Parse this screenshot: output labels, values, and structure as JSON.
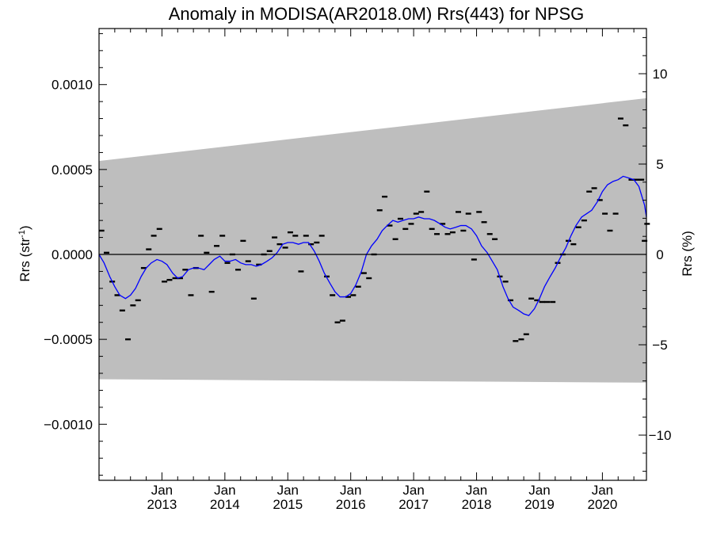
{
  "chart_data": {
    "type": "scatter",
    "title": "Anomaly in MODISA(AR2018.0M) Rrs(443) for NPSG",
    "ylabel_left": "Rrs (str",
    "ylabel_left_sup": "-1",
    "ylabel_left_end": ")",
    "ylabel_right": "Rrs (%)",
    "xlim": [
      2012.0,
      2020.7
    ],
    "ylim": [
      -0.00133,
      0.00133
    ],
    "y2lim": [
      -12.5,
      12.5
    ],
    "grid": false,
    "x_ticks": [
      {
        "top": "Jan",
        "bottom": "2013",
        "x": 2013
      },
      {
        "top": "Jan",
        "bottom": "2014",
        "x": 2014
      },
      {
        "top": "Jan",
        "bottom": "2015",
        "x": 2015
      },
      {
        "top": "Jan",
        "bottom": "2016",
        "x": 2016
      },
      {
        "top": "Jan",
        "bottom": "2017",
        "x": 2017
      },
      {
        "top": "Jan",
        "bottom": "2018",
        "x": 2018
      },
      {
        "top": "Jan",
        "bottom": "2019",
        "x": 2019
      },
      {
        "top": "Jan",
        "bottom": "2020",
        "x": 2020
      }
    ],
    "y_ticks_left": [
      {
        "value": 0.001,
        "label": "0.0010"
      },
      {
        "value": 0.0005,
        "label": "0.0005"
      },
      {
        "value": 0.0,
        "label": "0.0000"
      },
      {
        "value": -0.0005,
        "label": "−0.0005"
      },
      {
        "value": -0.001,
        "label": "−0.0010"
      }
    ],
    "y_ticks_right": [
      {
        "value": 10,
        "label": "10"
      },
      {
        "value": 5,
        "label": "5"
      },
      {
        "value": 0,
        "label": "0"
      },
      {
        "value": -5,
        "label": "−5"
      },
      {
        "value": -10,
        "label": "−10"
      }
    ],
    "band": {
      "color": "#bebebe",
      "upper": [
        [
          2012.0,
          0.00055
        ],
        [
          2020.7,
          0.00092
        ]
      ],
      "lower": [
        [
          2012.0,
          -0.000735
        ],
        [
          2020.7,
          -0.000755
        ]
      ]
    },
    "zero_line": 0.0,
    "colors": {
      "monthly": "#000000",
      "smoothed": "#0000ff",
      "zero": "#000000"
    },
    "series": [
      {
        "style": "dash",
        "values": [
          [
            2012.04,
            0.00014
          ],
          [
            2012.12,
            1e-05
          ],
          [
            2012.21,
            -0.00016
          ],
          [
            2012.29,
            -0.00024
          ],
          [
            2012.37,
            -0.00033
          ],
          [
            2012.46,
            -0.0005
          ],
          [
            2012.54,
            -0.0003
          ],
          [
            2012.62,
            -0.00027
          ],
          [
            2012.71,
            -8e-05
          ],
          [
            2012.79,
            3e-05
          ],
          [
            2012.87,
            0.00011
          ],
          [
            2012.96,
            0.00015
          ],
          [
            2013.04,
            -0.00016
          ],
          [
            2013.12,
            -0.00015
          ],
          [
            2013.21,
            -0.00014
          ],
          [
            2013.29,
            -0.00014
          ],
          [
            2013.37,
            -9e-05
          ],
          [
            2013.46,
            -0.00024
          ],
          [
            2013.54,
            -8e-05
          ],
          [
            2013.62,
            0.00011
          ],
          [
            2013.71,
            1e-05
          ],
          [
            2013.79,
            -0.00022
          ],
          [
            2013.87,
            5e-05
          ],
          [
            2013.96,
            0.00011
          ],
          [
            2014.04,
            -5e-05
          ],
          [
            2014.12,
            0.0
          ],
          [
            2014.21,
            -9e-05
          ],
          [
            2014.29,
            8e-05
          ],
          [
            2014.37,
            -4e-05
          ],
          [
            2014.46,
            -0.00026
          ],
          [
            2014.54,
            -6e-05
          ],
          [
            2014.62,
            0.0
          ],
          [
            2014.71,
            2e-05
          ],
          [
            2014.79,
            0.0001
          ],
          [
            2014.87,
            6e-05
          ],
          [
            2014.96,
            4e-05
          ],
          [
            2015.04,
            0.00013
          ],
          [
            2015.12,
            0.00011
          ],
          [
            2015.21,
            -0.0001
          ],
          [
            2015.29,
            0.00011
          ],
          [
            2015.37,
            6e-05
          ],
          [
            2015.46,
            7e-05
          ],
          [
            2015.54,
            0.00011
          ],
          [
            2015.62,
            -0.00013
          ],
          [
            2015.71,
            -0.00024
          ],
          [
            2015.79,
            -0.0004
          ],
          [
            2015.87,
            -0.00039
          ],
          [
            2015.96,
            -0.00025
          ],
          [
            2016.04,
            -0.00024
          ],
          [
            2016.12,
            -0.00019
          ],
          [
            2016.21,
            -0.00011
          ],
          [
            2016.29,
            -0.00014
          ],
          [
            2016.37,
            0.0
          ],
          [
            2016.46,
            0.00026
          ],
          [
            2016.54,
            0.00034
          ],
          [
            2016.62,
            0.00017
          ],
          [
            2016.71,
            9e-05
          ],
          [
            2016.79,
            0.00021
          ],
          [
            2016.87,
            0.00015
          ],
          [
            2016.96,
            0.00018
          ],
          [
            2017.04,
            0.00024
          ],
          [
            2017.12,
            0.00025
          ],
          [
            2017.21,
            0.00037
          ],
          [
            2017.29,
            0.00015
          ],
          [
            2017.37,
            0.00012
          ],
          [
            2017.46,
            0.00018
          ],
          [
            2017.54,
            0.00012
          ],
          [
            2017.62,
            0.00013
          ],
          [
            2017.71,
            0.00025
          ],
          [
            2017.79,
            0.00014
          ],
          [
            2017.87,
            0.00024
          ],
          [
            2017.96,
            -3e-05
          ],
          [
            2018.04,
            0.00025
          ],
          [
            2018.12,
            0.00019
          ],
          [
            2018.21,
            0.00012
          ],
          [
            2018.29,
            9e-05
          ],
          [
            2018.37,
            -0.00013
          ],
          [
            2018.46,
            -0.00016
          ],
          [
            2018.54,
            -0.00027
          ],
          [
            2018.62,
            -0.00051
          ],
          [
            2018.71,
            -0.0005
          ],
          [
            2018.79,
            -0.00047
          ],
          [
            2018.87,
            -0.00026
          ],
          [
            2018.96,
            -0.00027
          ],
          [
            2019.04,
            -0.00028
          ],
          [
            2019.12,
            -0.00028
          ],
          [
            2019.21,
            -0.00028
          ],
          [
            2019.29,
            -5e-05
          ],
          [
            2019.37,
            -0.0
          ],
          [
            2019.46,
            8e-05
          ],
          [
            2019.54,
            6e-05
          ],
          [
            2019.62,
            0.00016
          ],
          [
            2019.71,
            0.0002
          ],
          [
            2019.79,
            0.00037
          ],
          [
            2019.87,
            0.00039
          ],
          [
            2019.96,
            0.00032
          ],
          [
            2020.04,
            0.00024
          ],
          [
            2020.12,
            0.00014
          ],
          [
            2020.21,
            0.00024
          ],
          [
            2020.29,
            0.0008
          ],
          [
            2020.37,
            0.00076
          ],
          [
            2020.46,
            0.00044
          ],
          [
            2020.54,
            0.00044
          ],
          [
            2020.62,
            0.00044
          ],
          [
            2020.67,
            8e-05
          ],
          [
            2020.71,
            0.00018
          ]
        ]
      },
      {
        "style": "line",
        "values": [
          [
            2012.0,
            0.0
          ],
          [
            2012.08,
            -5e-05
          ],
          [
            2012.17,
            -0.00013
          ],
          [
            2012.25,
            -0.00019
          ],
          [
            2012.33,
            -0.00024
          ],
          [
            2012.42,
            -0.00026
          ],
          [
            2012.5,
            -0.00024
          ],
          [
            2012.58,
            -0.0002
          ],
          [
            2012.67,
            -0.00013
          ],
          [
            2012.75,
            -8e-05
          ],
          [
            2012.83,
            -5e-05
          ],
          [
            2012.92,
            -3e-05
          ],
          [
            2013.0,
            -4e-05
          ],
          [
            2013.08,
            -6e-05
          ],
          [
            2013.17,
            -0.00011
          ],
          [
            2013.25,
            -0.00014
          ],
          [
            2013.33,
            -0.00013
          ],
          [
            2013.42,
            -9e-05
          ],
          [
            2013.5,
            -8e-05
          ],
          [
            2013.58,
            -8e-05
          ],
          [
            2013.67,
            -9e-05
          ],
          [
            2013.75,
            -6e-05
          ],
          [
            2013.83,
            -3e-05
          ],
          [
            2013.92,
            -1e-05
          ],
          [
            2014.0,
            -4e-05
          ],
          [
            2014.08,
            -4e-05
          ],
          [
            2014.17,
            -3e-05
          ],
          [
            2014.25,
            -5e-05
          ],
          [
            2014.33,
            -6e-05
          ],
          [
            2014.42,
            -6e-05
          ],
          [
            2014.5,
            -7e-05
          ],
          [
            2014.58,
            -6e-05
          ],
          [
            2014.67,
            -4e-05
          ],
          [
            2014.75,
            -2e-05
          ],
          [
            2014.83,
            1e-05
          ],
          [
            2014.92,
            6e-05
          ],
          [
            2015.0,
            7e-05
          ],
          [
            2015.08,
            7e-05
          ],
          [
            2015.17,
            6e-05
          ],
          [
            2015.25,
            7e-05
          ],
          [
            2015.33,
            7e-05
          ],
          [
            2015.42,
            2e-05
          ],
          [
            2015.5,
            -4e-05
          ],
          [
            2015.58,
            -0.00011
          ],
          [
            2015.67,
            -0.00017
          ],
          [
            2015.75,
            -0.00022
          ],
          [
            2015.83,
            -0.00025
          ],
          [
            2015.92,
            -0.00025
          ],
          [
            2016.0,
            -0.00023
          ],
          [
            2016.08,
            -0.00018
          ],
          [
            2016.17,
            -0.0001
          ],
          [
            2016.25,
            0.0
          ],
          [
            2016.33,
            5e-05
          ],
          [
            2016.42,
            9e-05
          ],
          [
            2016.5,
            0.00014
          ],
          [
            2016.58,
            0.00017
          ],
          [
            2016.67,
            0.0002
          ],
          [
            2016.75,
            0.00019
          ],
          [
            2016.83,
            0.0002
          ],
          [
            2016.92,
            0.00021
          ],
          [
            2017.0,
            0.00021
          ],
          [
            2017.08,
            0.00022
          ],
          [
            2017.17,
            0.00021
          ],
          [
            2017.25,
            0.00021
          ],
          [
            2017.33,
            0.0002
          ],
          [
            2017.42,
            0.00018
          ],
          [
            2017.5,
            0.00016
          ],
          [
            2017.58,
            0.00015
          ],
          [
            2017.67,
            0.00016
          ],
          [
            2017.75,
            0.00017
          ],
          [
            2017.83,
            0.00017
          ],
          [
            2017.92,
            0.00015
          ],
          [
            2018.0,
            0.00011
          ],
          [
            2018.08,
            5e-05
          ],
          [
            2018.17,
            1e-05
          ],
          [
            2018.25,
            -4e-05
          ],
          [
            2018.33,
            -9e-05
          ],
          [
            2018.42,
            -0.00019
          ],
          [
            2018.5,
            -0.00026
          ],
          [
            2018.58,
            -0.00031
          ],
          [
            2018.67,
            -0.00033
          ],
          [
            2018.75,
            -0.00035
          ],
          [
            2018.83,
            -0.00036
          ],
          [
            2018.92,
            -0.00032
          ],
          [
            2019.0,
            -0.00026
          ],
          [
            2019.08,
            -0.00019
          ],
          [
            2019.17,
            -0.00013
          ],
          [
            2019.25,
            -8e-05
          ],
          [
            2019.33,
            -2e-05
          ],
          [
            2019.42,
            4e-05
          ],
          [
            2019.5,
            0.00011
          ],
          [
            2019.58,
            0.00017
          ],
          [
            2019.67,
            0.00022
          ],
          [
            2019.75,
            0.00024
          ],
          [
            2019.83,
            0.00026
          ],
          [
            2019.92,
            0.00031
          ],
          [
            2020.0,
            0.00037
          ],
          [
            2020.08,
            0.00041
          ],
          [
            2020.17,
            0.00043
          ],
          [
            2020.25,
            0.00044
          ],
          [
            2020.33,
            0.00046
          ],
          [
            2020.42,
            0.00045
          ],
          [
            2020.5,
            0.00044
          ],
          [
            2020.58,
            0.0004
          ],
          [
            2020.67,
            0.00029
          ],
          [
            2020.7,
            0.00022
          ]
        ]
      }
    ]
  }
}
